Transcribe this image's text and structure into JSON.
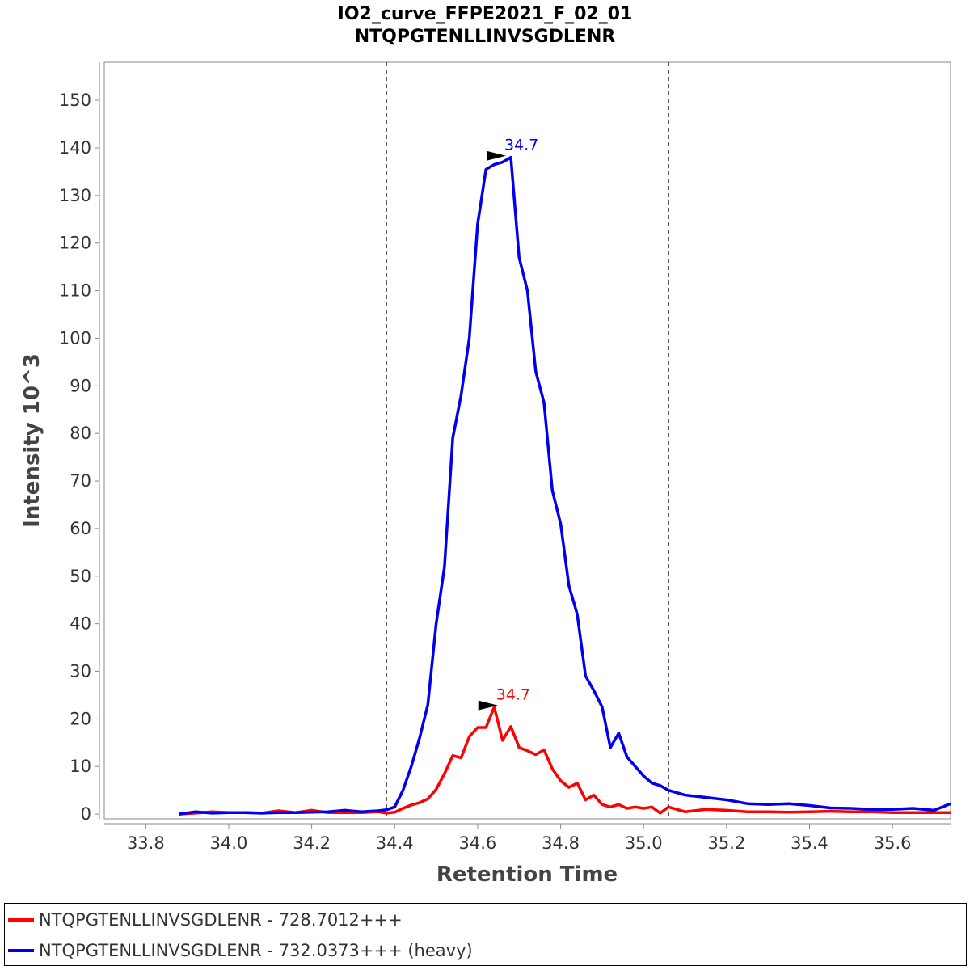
{
  "chart_data": {
    "type": "line",
    "title": "IO2_curve_FFPE2021_F_02_01",
    "subtitle": "NTQPGTENLLINVSGDLENR",
    "xlabel": "Retention Time",
    "ylabel": "Intensity 10^3",
    "xlim": [
      33.7,
      35.74
    ],
    "ylim": [
      -1,
      158
    ],
    "x_ticks": [
      33.8,
      34.0,
      34.2,
      34.4,
      34.6,
      34.8,
      35.0,
      35.2,
      35.4,
      35.6
    ],
    "x_tick_labels": [
      "33.8",
      "34.0",
      "34.2",
      "34.4",
      "34.6",
      "34.8",
      "35.0",
      "35.2",
      "35.4",
      "35.6"
    ],
    "y_ticks": [
      0,
      10,
      20,
      30,
      40,
      50,
      60,
      70,
      80,
      90,
      100,
      110,
      120,
      130,
      140,
      150
    ],
    "y_tick_labels": [
      "0",
      "10",
      "20",
      "30",
      "40",
      "50",
      "60",
      "70",
      "80",
      "90",
      "100",
      "110",
      "120",
      "130",
      "140",
      "150"
    ],
    "grid": false,
    "integration_boundaries": [
      34.38,
      35.06
    ],
    "legend_position": "bottom",
    "series": [
      {
        "name": "NTQPGTENLLINVSGDLENR - 728.7012+++",
        "color": "#ff0000",
        "peak_label": "34.7",
        "peak_x": 34.66,
        "peak_y": 22.5,
        "x": [
          33.88,
          33.92,
          33.96,
          34.0,
          34.04,
          34.08,
          34.12,
          34.16,
          34.2,
          34.24,
          34.28,
          34.32,
          34.36,
          34.38,
          34.4,
          34.42,
          34.44,
          34.46,
          34.48,
          34.5,
          34.52,
          34.54,
          34.56,
          34.58,
          34.6,
          34.62,
          34.64,
          34.66,
          34.68,
          34.7,
          34.72,
          34.74,
          34.76,
          34.78,
          34.8,
          34.82,
          34.84,
          34.86,
          34.88,
          34.9,
          34.92,
          34.94,
          34.96,
          34.98,
          35.0,
          35.02,
          35.04,
          35.06,
          35.1,
          35.15,
          35.2,
          35.25,
          35.3,
          35.35,
          35.4,
          35.45,
          35.5,
          35.55,
          35.6,
          35.65,
          35.7,
          35.74
        ],
        "values": [
          0.0,
          0.2,
          0.5,
          0.3,
          0.3,
          0.2,
          0.7,
          0.3,
          0.8,
          0.3,
          0.3,
          0.3,
          0.5,
          0.2,
          0.4,
          1.2,
          1.9,
          2.4,
          3.2,
          5.2,
          8.5,
          12.3,
          11.8,
          16.3,
          18.2,
          18.2,
          22.5,
          15.5,
          18.4,
          14.0,
          13.3,
          12.5,
          13.5,
          9.5,
          7.0,
          5.6,
          6.5,
          3.0,
          4.0,
          2.0,
          1.5,
          2.0,
          1.2,
          1.5,
          1.2,
          1.5,
          0.2,
          1.5,
          0.5,
          1.0,
          0.8,
          0.5,
          0.5,
          0.4,
          0.5,
          0.6,
          0.5,
          0.5,
          0.3,
          0.3,
          0.3,
          0.3
        ]
      },
      {
        "name": "NTQPGTENLLINVSGDLENR - 732.0373+++ (heavy)",
        "color": "#0000ee",
        "peak_label": "34.7",
        "peak_x": 34.68,
        "peak_y": 138.0,
        "x": [
          33.88,
          33.92,
          33.96,
          34.0,
          34.04,
          34.08,
          34.12,
          34.16,
          34.2,
          34.24,
          34.28,
          34.32,
          34.36,
          34.38,
          34.4,
          34.42,
          34.44,
          34.46,
          34.48,
          34.5,
          34.52,
          34.54,
          34.56,
          34.58,
          34.6,
          34.62,
          34.64,
          34.66,
          34.68,
          34.7,
          34.72,
          34.74,
          34.76,
          34.78,
          34.8,
          34.82,
          34.84,
          34.86,
          34.88,
          34.9,
          34.92,
          34.94,
          34.96,
          34.98,
          35.0,
          35.02,
          35.04,
          35.06,
          35.1,
          35.15,
          35.2,
          35.25,
          35.3,
          35.35,
          35.4,
          35.45,
          35.5,
          35.55,
          35.6,
          35.65,
          35.7,
          35.74
        ],
        "values": [
          0.0,
          0.5,
          0.2,
          0.3,
          0.3,
          0.2,
          0.3,
          0.3,
          0.4,
          0.5,
          0.8,
          0.5,
          0.7,
          0.9,
          1.5,
          5.0,
          10.0,
          16.0,
          23.0,
          40.0,
          52.0,
          79.0,
          88.0,
          100.0,
          124.0,
          135.5,
          136.5,
          137.0,
          138.0,
          117.0,
          110.0,
          93.0,
          86.5,
          68.0,
          61.0,
          48.0,
          42.0,
          29.0,
          26.0,
          22.5,
          14.0,
          17.0,
          12.0,
          10.0,
          8.0,
          6.5,
          6.0,
          5.0,
          4.0,
          3.5,
          3.0,
          2.2,
          2.0,
          2.2,
          1.8,
          1.3,
          1.2,
          1.0,
          1.0,
          1.2,
          0.8,
          2.2
        ]
      }
    ]
  }
}
